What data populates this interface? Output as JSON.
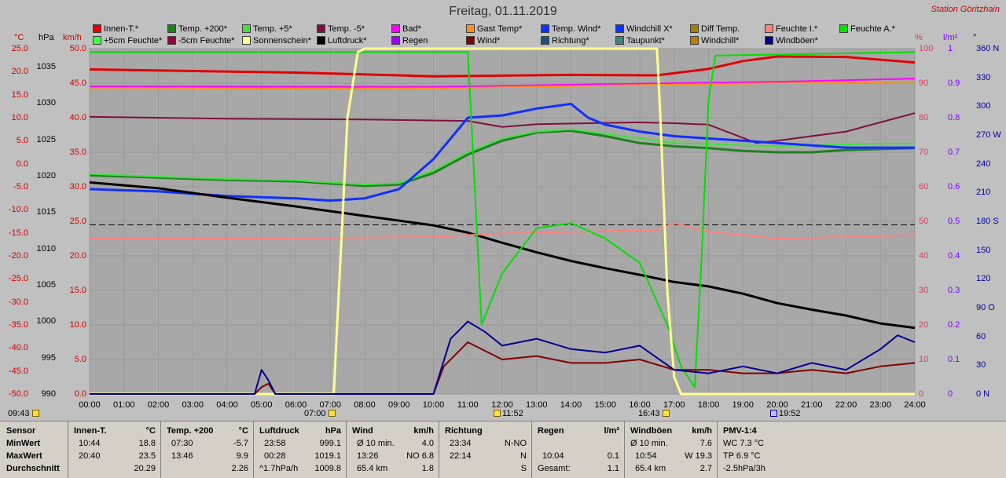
{
  "title": "Freitag, 01.11.2019",
  "station": "Station Göritzhain",
  "legend": [
    {
      "label": "Innen-T.*",
      "color": "#e00000"
    },
    {
      "label": "Temp. +200*",
      "color": "#208020"
    },
    {
      "label": "Temp. +5*",
      "color": "#40e040"
    },
    {
      "label": "Temp. -5*",
      "color": "#801040"
    },
    {
      "label": "Bad*",
      "color": "#ff00ff"
    },
    {
      "label": "Gast Temp*",
      "color": "#ff9020"
    },
    {
      "label": "Temp. Wind*",
      "color": "#1030ff"
    },
    {
      "label": "Windchill X*",
      "color": "#1030ff"
    },
    {
      "label": "Diff Temp.",
      "color": "#a08000"
    },
    {
      "label": "Feuchte I.*",
      "color": "#ff8080"
    },
    {
      "label": "Feuchte A.*",
      "color": "#00e000"
    },
    {
      "label": "+5cm Feuchte*",
      "color": "#40ff40"
    },
    {
      "label": "-5cm Feuchte*",
      "color": "#900040"
    },
    {
      "label": "Sonnenschein*",
      "color": "#ffff90"
    },
    {
      "label": "Luftdruck*",
      "color": "#000000"
    },
    {
      "label": "Regen",
      "color": "#a000ff"
    },
    {
      "label": "Wind*",
      "color": "#800000"
    },
    {
      "label": "Richtung*",
      "color": "#205080"
    },
    {
      "label": "Taupunkt*",
      "color": "#408080"
    },
    {
      "label": "Windchill*",
      "color": "#c08000"
    },
    {
      "label": "Windböen*",
      "color": "#000090"
    }
  ],
  "axes": {
    "temp": {
      "unit": "°C",
      "ticks": [
        "25.0",
        "20.0",
        "15.0",
        "10.0",
        "5.0",
        "0.0",
        "-5.0",
        "-10.0",
        "-15.0",
        "-20.0",
        "-25.0",
        "-30.0",
        "-35.0",
        "-40.0",
        "-45.0",
        "-50.0"
      ]
    },
    "pressure": {
      "unit": "hPa",
      "ticks": [
        "1035",
        "1030",
        "1025",
        "1020",
        "1015",
        "1010",
        "1005",
        "1000",
        "995",
        "990"
      ]
    },
    "wind": {
      "unit": "km/h",
      "ticks": [
        "50.0",
        "45.0",
        "40.0",
        "35.0",
        "30.0",
        "25.0",
        "20.0",
        "15.0",
        "10.0",
        "5.0",
        "0.0"
      ]
    },
    "humidity": {
      "unit": "%",
      "ticks": [
        "100",
        "90",
        "80",
        "70",
        "60",
        "50",
        "40",
        "30",
        "20",
        "10",
        "0"
      ]
    },
    "rain": {
      "unit": "l/m²",
      "ticks": [
        "1",
        "0.9",
        "0.8",
        "0.7",
        "0.6",
        "0.5",
        "0.4",
        "0.3",
        "0.2",
        "0.1",
        "0"
      ]
    },
    "direction": {
      "unit": "°",
      "ticks": [
        "360 N",
        "330",
        "300",
        "270 W",
        "240",
        "210",
        "180 S",
        "150",
        "120",
        "90 O",
        "60",
        "30",
        "0 N"
      ]
    }
  },
  "x_ticks": [
    "00:00",
    "01:00",
    "02:00",
    "03:00",
    "04:00",
    "05:00",
    "06:00",
    "07:00",
    "08:00",
    "09:00",
    "10:00",
    "11:00",
    "12:00",
    "13:00",
    "14:00",
    "15:00",
    "16:00",
    "17:00",
    "18:00",
    "19:00",
    "20:00",
    "21:00",
    "22:00",
    "23:00",
    "24:00"
  ],
  "events": {
    "sun_total": "09:43",
    "sunrise": "07:00",
    "noon": "11:52",
    "sunset": "16:43",
    "moon": "19:52"
  },
  "chart_data": {
    "type": "line",
    "title": "Freitag, 01.11.2019",
    "xlim": [
      "00:00",
      "24:00"
    ],
    "temp_ylim": [
      -50,
      25
    ],
    "series": [
      {
        "name": "Innen-T.*",
        "axis": "temp",
        "x": [
          0,
          6,
          10,
          14,
          16.5,
          18,
          19,
          20,
          22,
          24
        ],
        "y": [
          20.5,
          19.8,
          19.0,
          19.3,
          19.2,
          20.6,
          22.3,
          23.3,
          23.2,
          22.0
        ]
      },
      {
        "name": "Temp. +200*",
        "axis": "temp",
        "x": [
          0,
          2,
          4,
          6,
          8,
          9,
          10,
          11,
          12,
          13,
          14,
          15,
          16,
          17,
          18,
          19,
          20,
          21,
          22,
          23,
          24
        ],
        "y": [
          -2.5,
          -3.0,
          -3.5,
          -3.8,
          -4.8,
          -4.5,
          -2.0,
          2.0,
          5.0,
          6.8,
          7.2,
          6.0,
          4.5,
          3.8,
          3.4,
          2.8,
          2.5,
          2.5,
          3.0,
          3.2,
          3.4
        ]
      },
      {
        "name": "Temp. +5*",
        "axis": "temp",
        "x": [
          0,
          2,
          4,
          6,
          8,
          9,
          10,
          11,
          12,
          13,
          14,
          15,
          16,
          17,
          18,
          19,
          20,
          21,
          22,
          23,
          24
        ],
        "y": [
          -2.2,
          -2.8,
          -3.3,
          -3.6,
          -4.5,
          -4.2,
          -1.5,
          2.5,
          5.5,
          7.0,
          7.5,
          6.5,
          5.5,
          4.5,
          4.3,
          4.0,
          3.8,
          4.0,
          4.2,
          4.4,
          4.4
        ]
      },
      {
        "name": "Temp. -5*",
        "axis": "temp",
        "x": [
          0,
          4,
          8,
          11,
          12,
          13,
          16,
          17,
          18,
          19.4,
          20,
          22,
          24
        ],
        "y": [
          10.2,
          9.8,
          9.6,
          9.3,
          8.0,
          8.6,
          9.0,
          8.8,
          8.5,
          4.5,
          5.0,
          7.0,
          11.0
        ]
      },
      {
        "name": "Bad*",
        "axis": "temp",
        "x": [
          0,
          10,
          15,
          20,
          24
        ],
        "y": [
          16.8,
          16.7,
          17.3,
          17.8,
          18.5
        ]
      },
      {
        "name": "Gast Temp*",
        "axis": "temp",
        "x": [
          0,
          10,
          15,
          20,
          24
        ],
        "y": [
          16.2,
          16.4,
          17.0,
          17.5,
          17.8
        ]
      },
      {
        "name": "Temp. Wind*",
        "axis": "temp",
        "x": [
          0,
          2,
          4,
          6,
          7,
          8,
          9,
          10,
          11,
          12,
          13,
          14,
          14.5,
          15,
          16,
          17,
          18,
          19,
          20,
          21,
          22,
          23,
          24
        ],
        "y": [
          -5.5,
          -6.0,
          -7.0,
          -7.5,
          -8.0,
          -7.5,
          -5.5,
          1.0,
          10.0,
          10.5,
          12.0,
          13.0,
          10.0,
          8.5,
          7.0,
          6.0,
          5.5,
          5.0,
          4.5,
          4.0,
          3.5,
          3.5,
          3.5
        ]
      },
      {
        "name": "Luftdruck*",
        "axis": "pressure",
        "x": [
          0,
          2,
          4,
          6,
          8,
          10,
          11,
          12,
          13,
          14,
          15,
          16,
          17,
          18,
          19,
          20,
          21,
          22,
          23,
          24
        ],
        "y": [
          1019.1,
          1018.3,
          1017.0,
          1015.8,
          1014.5,
          1013.2,
          1012.2,
          1010.8,
          1009.5,
          1008.3,
          1007.3,
          1006.4,
          1005.4,
          1004.8,
          1003.8,
          1002.5,
          1001.6,
          1000.8,
          999.7,
          999.1
        ]
      },
      {
        "name": "Feuchte I.*",
        "axis": "humidity",
        "x": [
          0,
          5,
          10,
          12,
          16.5,
          17,
          18,
          20,
          24
        ],
        "y": [
          45.0,
          45.0,
          45.5,
          46.5,
          47.5,
          49.5,
          47.0,
          45.0,
          46.0
        ]
      },
      {
        "name": "Feuchte A.*",
        "axis": "humidity",
        "x": [
          0,
          11,
          11.1,
          11.4,
          12,
          13,
          14,
          15,
          16,
          16.8,
          17.2,
          17.6,
          17.8,
          18,
          18.2,
          24
        ],
        "y": [
          99.0,
          99.0,
          80.0,
          20.0,
          35.0,
          48.0,
          49.5,
          45.0,
          38.0,
          20.0,
          8.0,
          2.0,
          40.0,
          85.0,
          98.0,
          99.0
        ]
      },
      {
        "name": "Sonnenschein*",
        "axis": "humidity",
        "x": [
          0,
          7.1,
          7.3,
          7.5,
          7.8,
          8,
          16.5,
          16.6,
          16.8,
          17,
          17.2,
          24
        ],
        "y": [
          0,
          0,
          40,
          80,
          99,
          100,
          100,
          80,
          30,
          5,
          0,
          0
        ]
      },
      {
        "name": "Wind*",
        "axis": "wind",
        "x": [
          0,
          4.8,
          5,
          5.2,
          5.4,
          10,
          10.3,
          11,
          12,
          13,
          14,
          15,
          16,
          17,
          18,
          19,
          20,
          21,
          22,
          23,
          24
        ],
        "y": [
          0,
          0,
          1.0,
          1.5,
          0,
          0,
          4.0,
          7.5,
          5.0,
          5.5,
          4.5,
          4.5,
          5.0,
          3.5,
          3.5,
          3.0,
          3.0,
          3.5,
          3.0,
          4.0,
          4.5
        ]
      },
      {
        "name": "Windböen*",
        "axis": "wind",
        "x": [
          0,
          4.8,
          5,
          5.2,
          5.4,
          10,
          10.5,
          11,
          11.5,
          12,
          13,
          14,
          15,
          16,
          17,
          18,
          19,
          20,
          21,
          22,
          23,
          23.5,
          24
        ],
        "y": [
          0,
          0,
          3.5,
          2.0,
          0,
          0,
          8.0,
          10.5,
          9.0,
          7.0,
          8.0,
          6.5,
          6.0,
          7.0,
          3.5,
          3.0,
          4.0,
          3.0,
          4.5,
          3.5,
          6.5,
          8.5,
          7.5
        ]
      }
    ]
  },
  "stats": {
    "labels": {
      "sensor": "Sensor",
      "min": "MinWert",
      "max": "MaxWert",
      "avg": "Durchschnitt"
    },
    "innen": {
      "title": "Innen-T.",
      "unit": "°C",
      "min_time": "10:44",
      "min": "18.8",
      "max_time": "20:40",
      "max": "23.5",
      "avg": "20.29"
    },
    "temp": {
      "title": "Temp. +200",
      "unit": "°C",
      "min_time": "07:30",
      "min": "-5.7",
      "max_time": "13:46",
      "max": "9.9",
      "avg": "2.26"
    },
    "luft": {
      "title": "Luftdruck",
      "unit": "hPa",
      "min_time": "23:58",
      "min": "999.1",
      "max_time": "00:28",
      "max": "1019.1",
      "avg_label": "^1.7hPa/h",
      "avg": "1009.8"
    },
    "wind": {
      "title": "Wind",
      "unit": "km/h",
      "min_label": "Ø 10 min.",
      "min": "4.0",
      "max_time": "13:26",
      "max": "NO 6.8",
      "avg_label": "65.4 km",
      "avg": "1.8"
    },
    "richtung": {
      "title": "Richtung",
      "min_time": "23:34",
      "min": "N-NO",
      "max_time": "22:14",
      "max": "N",
      "avg": "S"
    },
    "regen": {
      "title": "Regen",
      "unit": "l/m²",
      "max_time": "10:04",
      "max": "0.1",
      "avg_label": "Gesamt:",
      "avg": "1.1"
    },
    "boeen": {
      "title": "Windböen",
      "unit": "km/h",
      "min_label": "Ø 10 min.",
      "min": "7.6",
      "max_time": "10:54",
      "max": "W 19.3",
      "avg_label": "65.4 km",
      "avg": "2.7"
    },
    "pmv": {
      "title": "PMV-1:4",
      "line1": "WC 7.3 °C",
      "line2": "TP 6.9 °C",
      "line3": "-2.5hPa/3h"
    }
  }
}
